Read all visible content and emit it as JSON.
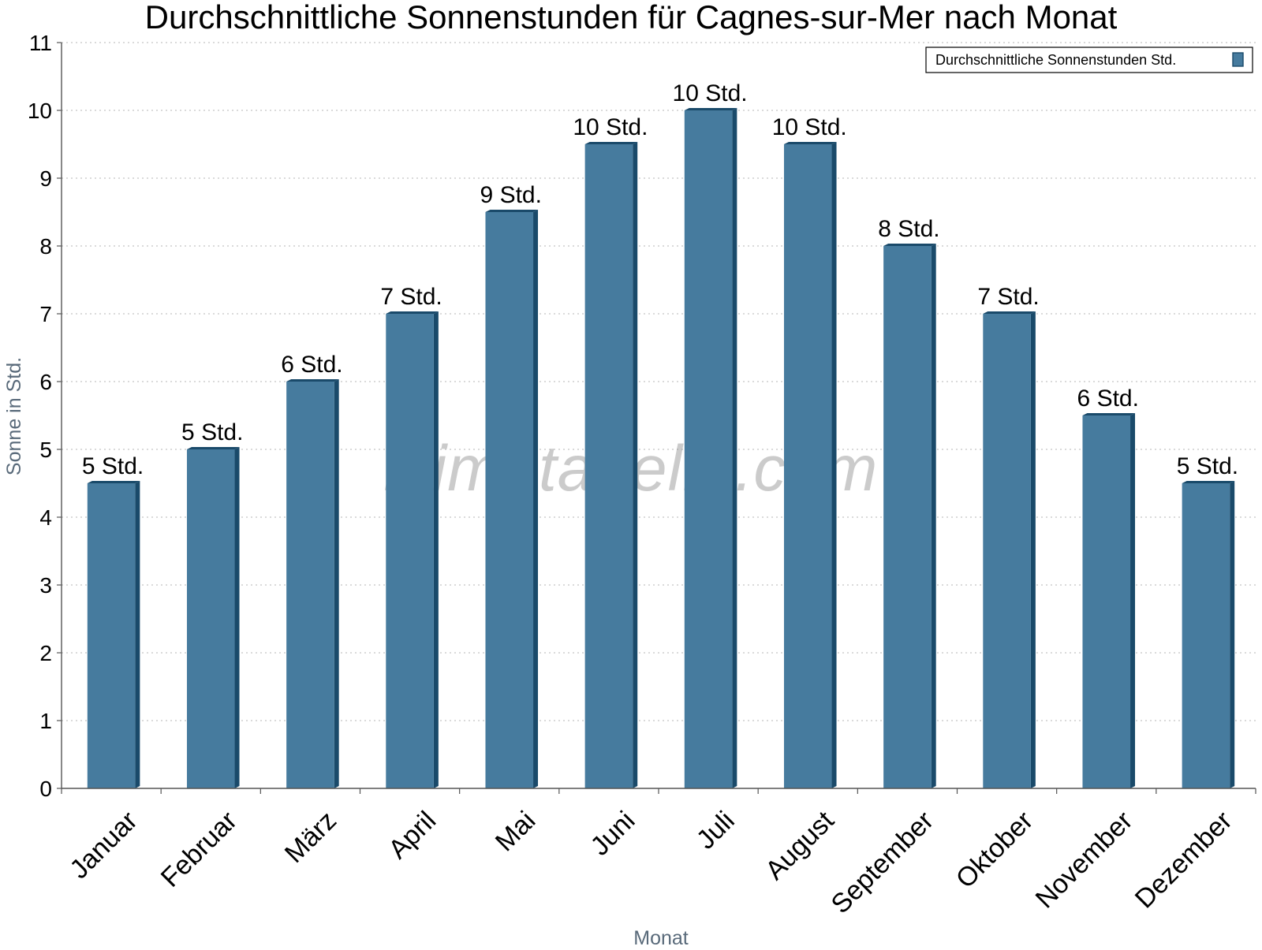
{
  "chart_data": {
    "type": "bar",
    "title": "Durchschnittliche Sonnenstunden für Cagnes-sur-Mer nach Monat",
    "xlabel": "Monat",
    "ylabel": "Sonne in Std.",
    "ylim": [
      0,
      11
    ],
    "yticks": [
      "0",
      "1",
      "2",
      "3",
      "4",
      "5",
      "6",
      "7",
      "8",
      "9",
      "10",
      "11"
    ],
    "grid": true,
    "legend_position": "top-right",
    "categories": [
      "Januar",
      "Februar",
      "März",
      "April",
      "Mai",
      "Juni",
      "Juli",
      "August",
      "September",
      "Oktober",
      "November",
      "Dezember"
    ],
    "series": [
      {
        "name": "Durchschnittliche Sonnenstunden Std.",
        "values": [
          4.5,
          5,
          6,
          7,
          8.5,
          9.5,
          10,
          9.5,
          8,
          7,
          5.5,
          4.5
        ],
        "labels": [
          "5 Std.",
          "5 Std.",
          "6 Std.",
          "7 Std.",
          "9 Std.",
          "10 Std.",
          "10 Std.",
          "10 Std.",
          "8 Std.",
          "7 Std.",
          "6 Std.",
          "5 Std."
        ],
        "color": "#467b9e",
        "side_color": "#1a4a6a"
      }
    ],
    "watermark": "klimatabelle.com"
  }
}
